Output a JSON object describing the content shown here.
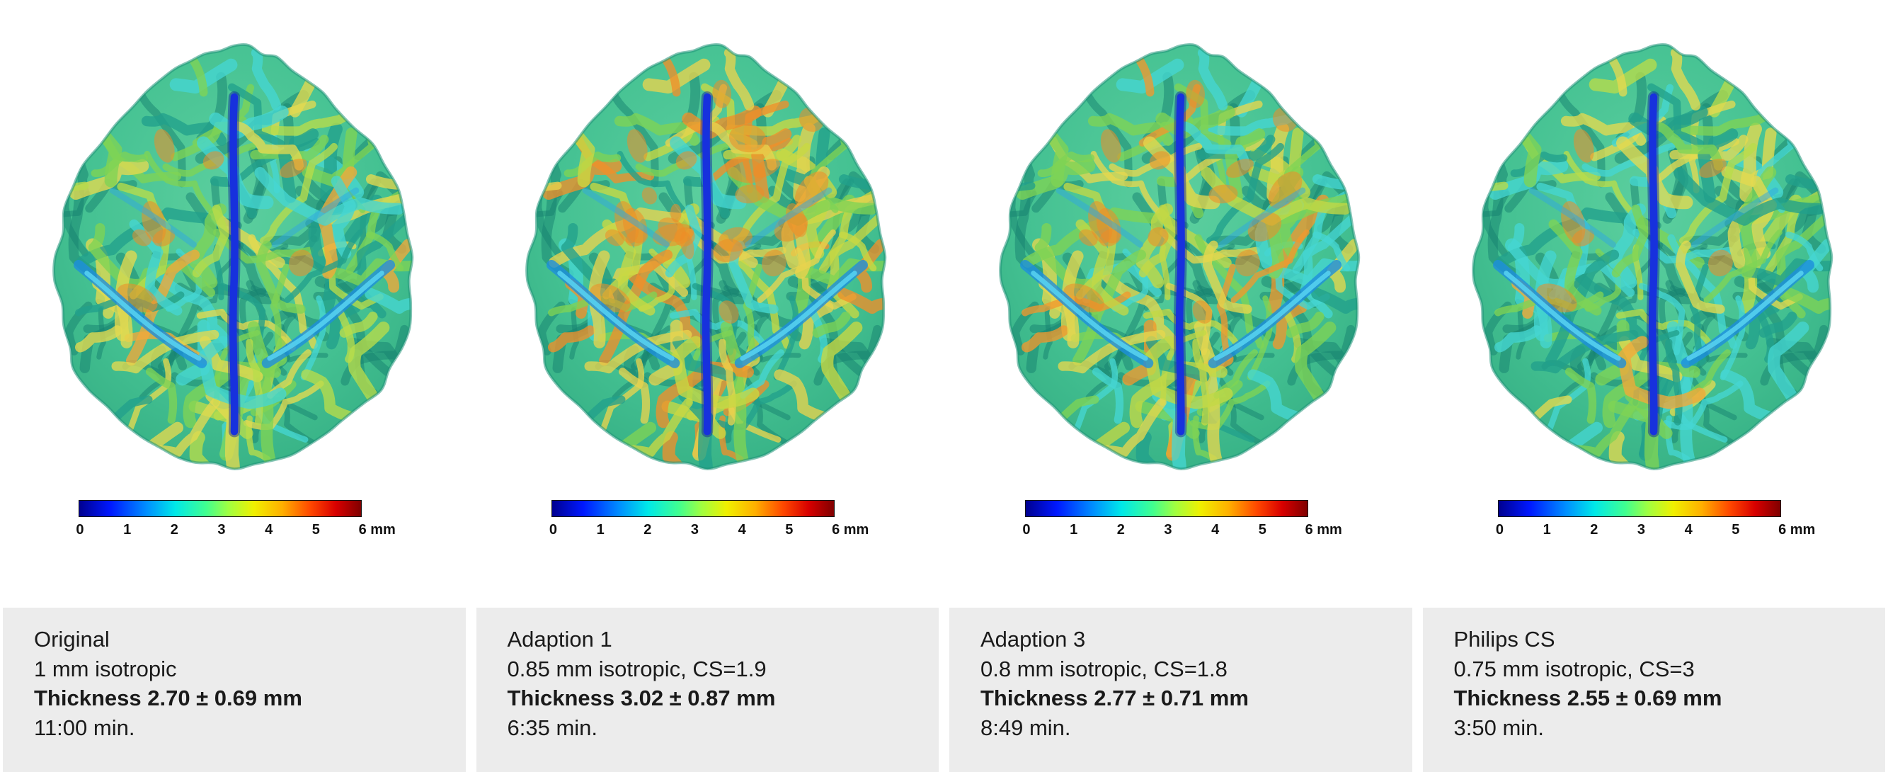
{
  "figure": {
    "background_color": "#ffffff",
    "caption_background_color": "#ececec",
    "text_color": "#1a1a1a",
    "colorbar": {
      "ticks": [
        "0",
        "1",
        "2",
        "3",
        "4",
        "5"
      ],
      "end_label": "6 mm",
      "range_mm": [
        0,
        6
      ],
      "gradient": [
        "#000090 0%",
        "#0018ff 11%",
        "#0090ff 24%",
        "#00e8e8 34%",
        "#40ff90 45%",
        "#a0ff40 53%",
        "#f0f000 62%",
        "#ffb000 72%",
        "#ff4800 82%",
        "#d80000 91%",
        "#800000 100%"
      ]
    },
    "panels": [
      {
        "title": "Original",
        "resolution": "1 mm isotropic",
        "thickness": "Thickness 2.70 ± 0.69 mm",
        "time": "11:00 min.",
        "surface_tint": "cool"
      },
      {
        "title": "Adaption 1",
        "resolution": "0.85 mm isotropic, CS=1.9",
        "thickness": "Thickness 3.02 ± 0.87 mm",
        "time": "6:35 min.",
        "surface_tint": "warm"
      },
      {
        "title": "Adaption 3",
        "resolution": "0.8 mm isotropic, CS=1.8",
        "thickness": "Thickness 2.77 ± 0.71 mm",
        "time": "8:49 min.",
        "surface_tint": "medium"
      },
      {
        "title": "Philips CS",
        "resolution": "0.75 mm isotropic, CS=3",
        "thickness": "Thickness 2.55 ± 0.69 mm",
        "time": "3:50 min.",
        "surface_tint": "coolest"
      }
    ]
  }
}
